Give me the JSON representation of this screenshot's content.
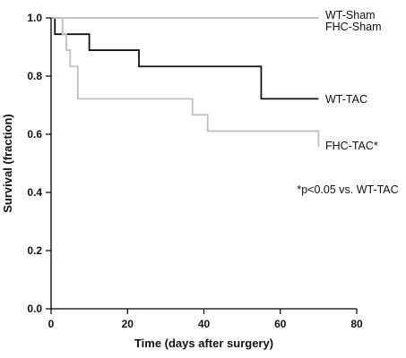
{
  "chart_data": {
    "type": "line",
    "title": "",
    "xlabel": "Time (days after surgery)",
    "ylabel": "Survival (fraction)",
    "xlim": [
      0,
      80
    ],
    "ylim": [
      0.0,
      1.0
    ],
    "xticks": [
      0,
      20,
      40,
      60,
      80
    ],
    "yticks": [
      0.0,
      0.2,
      0.4,
      0.6,
      0.8,
      1.0
    ],
    "xtick_labels": [
      "0",
      "20",
      "40",
      "60",
      "80"
    ],
    "ytick_labels": [
      "0.0",
      "0.2",
      "0.4",
      "0.6",
      "0.8",
      "1.0"
    ],
    "grid": false,
    "step": true,
    "series": [
      {
        "name": "WT-Sham",
        "color": "#c0c0c0",
        "x": [
          0,
          70
        ],
        "y": [
          1.0,
          1.0
        ]
      },
      {
        "name": "FHC-Sham",
        "color": "#c0c0c0",
        "x": [
          0,
          70
        ],
        "y": [
          1.0,
          1.0
        ]
      },
      {
        "name": "WT-TAC",
        "color": "#111111",
        "x": [
          0,
          1,
          10,
          23,
          55,
          70
        ],
        "y": [
          1.0,
          0.944,
          0.889,
          0.833,
          0.722,
          0.722
        ]
      },
      {
        "name": "FHC-TAC*",
        "color": "#c0c0c0",
        "x": [
          0,
          3,
          4,
          5,
          7,
          37,
          41,
          70
        ],
        "y": [
          1.0,
          0.944,
          0.889,
          0.833,
          0.722,
          0.667,
          0.611,
          0.556
        ]
      }
    ],
    "annotations": [
      "*p<0.05 vs. WT-TAC"
    ]
  }
}
